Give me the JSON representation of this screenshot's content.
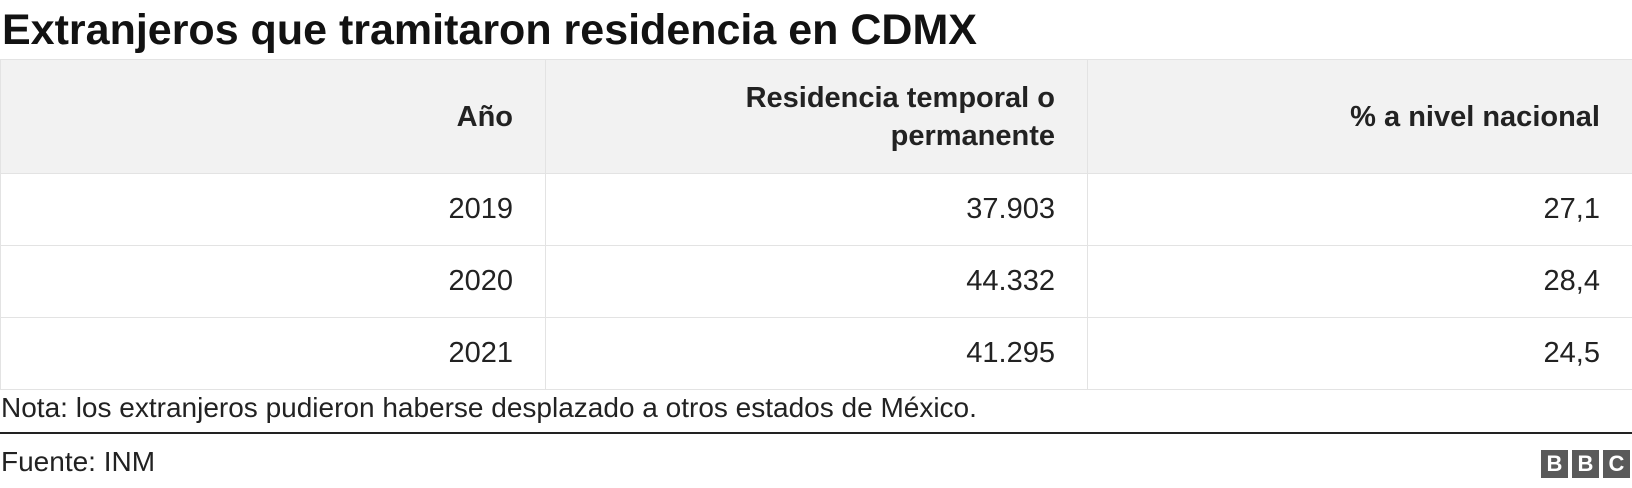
{
  "title": "Extranjeros que tramitaron residencia en CDMX",
  "chart_data": {
    "type": "table",
    "title": "Extranjeros que tramitaron residencia en CDMX",
    "columns": [
      "Año",
      "Residencia temporal o permanente",
      "% a nivel nacional"
    ],
    "rows": [
      [
        "2019",
        "37.903",
        "27,1"
      ],
      [
        "2020",
        "44.332",
        "28,4"
      ],
      [
        "2021",
        "41.295",
        "24,5"
      ]
    ]
  },
  "note": "Nota: los extranjeros pudieron haberse desplazado a otros estados de México.",
  "source": "Fuente: INM",
  "logo": [
    "B",
    "B",
    "C"
  ],
  "colors": {
    "header_bg": "#f2f2f2",
    "border": "#e3e3e3",
    "text": "#222222",
    "logo_bg": "#5a5a5a"
  }
}
